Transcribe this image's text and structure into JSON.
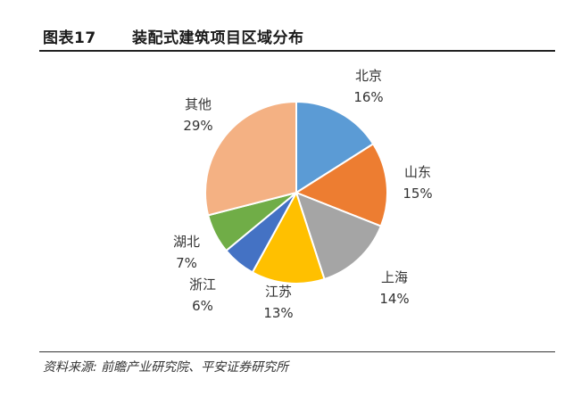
{
  "figure": {
    "number": "图表17",
    "title": "装配式建筑项目区域分布"
  },
  "chart_data": {
    "type": "pie",
    "title": "",
    "start_angle_deg": 0,
    "direction": "clockwise",
    "slices": [
      {
        "name": "北京",
        "value": 16,
        "label": "16%",
        "color": "#5B9BD5"
      },
      {
        "name": "山东",
        "value": 15,
        "label": "15%",
        "color": "#ED7D31"
      },
      {
        "name": "上海",
        "value": 14,
        "label": "14%",
        "color": "#A5A5A5"
      },
      {
        "name": "江苏",
        "value": 13,
        "label": "13%",
        "color": "#FFC000"
      },
      {
        "name": "浙江",
        "value": 6,
        "label": "6%",
        "color": "#4472C4"
      },
      {
        "name": "湖北",
        "value": 7,
        "label": "7%",
        "color": "#70AD47"
      },
      {
        "name": "其他",
        "value": 29,
        "label": "29%",
        "color": "#F4B183"
      }
    ]
  },
  "footer": {
    "source": "资料来源: 前瞻产业研究院、平安证券研究所"
  }
}
